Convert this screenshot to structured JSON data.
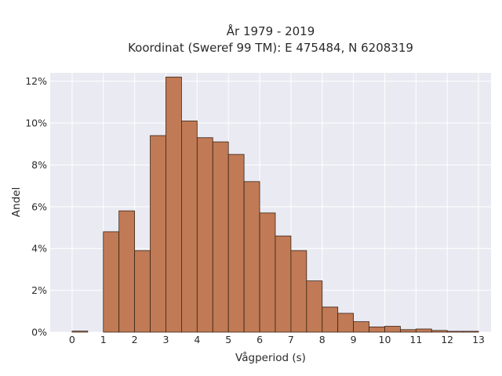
{
  "chart_data": {
    "type": "bar",
    "title": "År 1979 - 2019",
    "subtitle": "Koordinat (Sweref 99 TM): E 475484, N 6208319",
    "xlabel": "Vågperiod (s)",
    "ylabel": "Andel",
    "x_ticks": [
      "0",
      "1",
      "2",
      "3",
      "4",
      "5",
      "6",
      "7",
      "8",
      "9",
      "10",
      "11",
      "12",
      "13"
    ],
    "y_ticks": [
      "0%",
      "2%",
      "4%",
      "6%",
      "8%",
      "10%",
      "12%"
    ],
    "ylim": [
      0,
      12.4
    ],
    "xlim": [
      -0.7,
      13.4
    ],
    "bin_width": 0.5,
    "bins": [
      {
        "start": 0.0,
        "value": 0.05
      },
      {
        "start": 1.0,
        "value": 4.8
      },
      {
        "start": 1.5,
        "value": 5.8
      },
      {
        "start": 2.0,
        "value": 3.9
      },
      {
        "start": 2.5,
        "value": 9.4
      },
      {
        "start": 3.0,
        "value": 12.2
      },
      {
        "start": 3.5,
        "value": 10.1
      },
      {
        "start": 4.0,
        "value": 9.3
      },
      {
        "start": 4.5,
        "value": 9.1
      },
      {
        "start": 5.0,
        "value": 8.5
      },
      {
        "start": 5.5,
        "value": 7.2
      },
      {
        "start": 6.0,
        "value": 5.7
      },
      {
        "start": 6.5,
        "value": 4.6
      },
      {
        "start": 7.0,
        "value": 3.9
      },
      {
        "start": 7.5,
        "value": 2.45
      },
      {
        "start": 8.0,
        "value": 1.2
      },
      {
        "start": 8.5,
        "value": 0.9
      },
      {
        "start": 9.0,
        "value": 0.5
      },
      {
        "start": 9.5,
        "value": 0.25
      },
      {
        "start": 10.0,
        "value": 0.28
      },
      {
        "start": 10.5,
        "value": 0.12
      },
      {
        "start": 11.0,
        "value": 0.15
      },
      {
        "start": 11.5,
        "value": 0.08
      },
      {
        "start": 12.0,
        "value": 0.04
      },
      {
        "start": 12.5,
        "value": 0.04
      }
    ],
    "grid": true,
    "colors": {
      "bar_fill": "#c07a55",
      "bar_edge": "#3a2417",
      "plot_background": "#eaeaf2",
      "grid": "#ffffff"
    }
  }
}
